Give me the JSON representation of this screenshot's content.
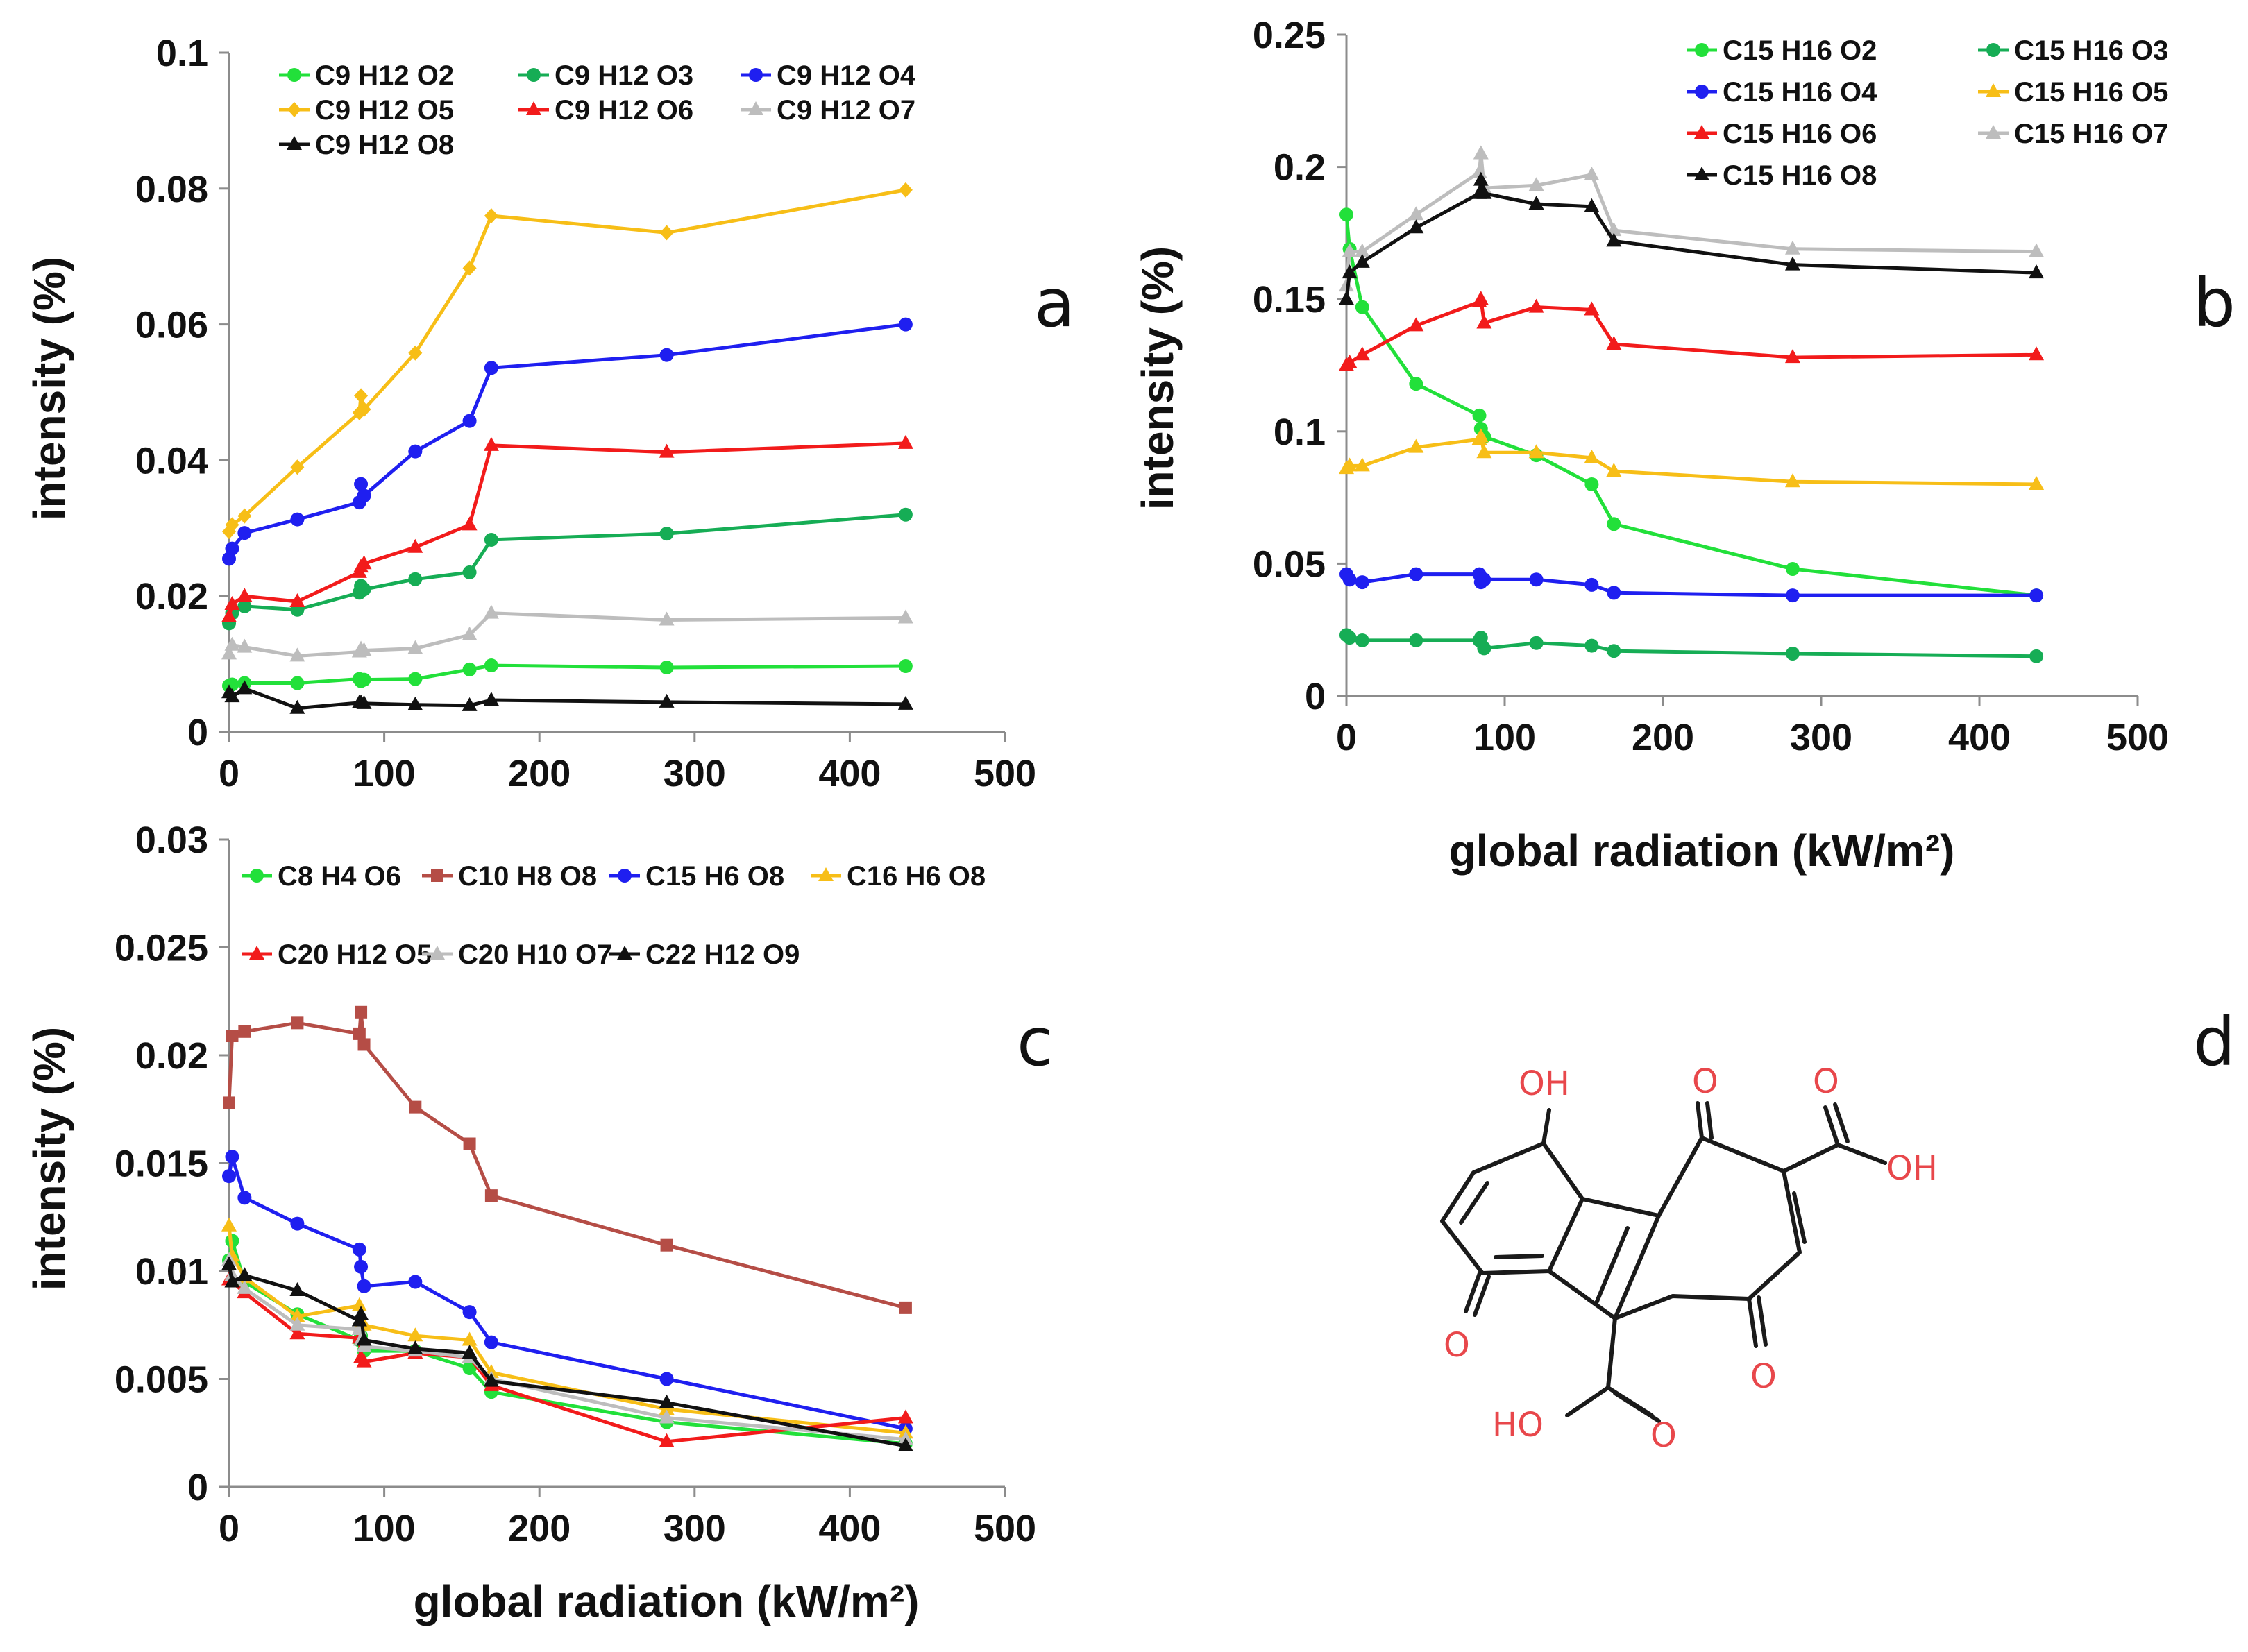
{
  "figure": {
    "panels": [
      "a",
      "b",
      "c",
      "d"
    ],
    "shared_xlabel": "global radiation (kW/m²)"
  },
  "colors": {
    "green": "#22e03a",
    "teal": "#16ad55",
    "blue": "#1f1ff0",
    "orange": "#f7be17",
    "red": "#f21b1b",
    "gray": "#bdbdbd",
    "black": "#111111",
    "brown": "#b54d46",
    "chem_red": "#e8474b",
    "chem_black": "#1a1a1a"
  },
  "chart_data": [
    {
      "id": "a",
      "type": "line",
      "title": "",
      "xlabel": "",
      "ylabel": "intensity (%)",
      "xlim": [
        0,
        500
      ],
      "ylim": [
        0,
        0.1
      ],
      "xticks": [
        0,
        100,
        200,
        300,
        400,
        500
      ],
      "yticks": [
        0,
        0.02,
        0.04,
        0.06,
        0.08,
        0.1
      ],
      "ytick_labels": [
        "0",
        "0.02",
        "0.04",
        "0.06",
        "0.08",
        "0.1"
      ],
      "xtick_labels": [
        "0",
        "100",
        "200",
        "300",
        "400",
        "500"
      ],
      "legend": "top",
      "x": [
        0,
        2,
        10,
        44,
        84,
        85,
        87,
        120,
        155,
        169,
        282,
        436
      ],
      "series": [
        {
          "name": "C9 H12 O2",
          "color": "green",
          "marker": "circle",
          "values": [
            0.0068,
            0.007,
            0.0072,
            0.0072,
            0.0078,
            0.0075,
            0.0077,
            0.0078,
            0.0092,
            0.0098,
            0.0095,
            0.0097
          ]
        },
        {
          "name": "C9 H12 O3",
          "color": "teal",
          "marker": "circle",
          "values": [
            0.016,
            0.0175,
            0.0185,
            0.018,
            0.0205,
            0.0215,
            0.021,
            0.0225,
            0.0235,
            0.0283,
            0.0292,
            0.032
          ]
        },
        {
          "name": "C9 H12 O4",
          "color": "blue",
          "marker": "circle",
          "values": [
            0.0255,
            0.027,
            0.0293,
            0.0313,
            0.0338,
            0.0365,
            0.0348,
            0.0413,
            0.0458,
            0.0536,
            0.0555,
            0.06
          ]
        },
        {
          "name": "C9 H12 O5",
          "color": "orange",
          "marker": "diamond",
          "values": [
            0.0295,
            0.0305,
            0.0318,
            0.039,
            0.047,
            0.0495,
            0.0475,
            0.0558,
            0.0683,
            0.076,
            0.0735,
            0.0798
          ]
        },
        {
          "name": "C9 H12 O6",
          "color": "red",
          "marker": "triangle",
          "values": [
            0.017,
            0.0188,
            0.02,
            0.0192,
            0.0235,
            0.0243,
            0.0248,
            0.0272,
            0.0305,
            0.0422,
            0.0412,
            0.0425
          ]
        },
        {
          "name": "C9 H12 O7",
          "color": "gray",
          "marker": "triangle",
          "values": [
            0.0115,
            0.0128,
            0.0125,
            0.0112,
            0.0118,
            0.0122,
            0.012,
            0.0123,
            0.0143,
            0.0175,
            0.0165,
            0.0168
          ]
        },
        {
          "name": "C9 H12 O8",
          "color": "black",
          "marker": "triangle",
          "values": [
            0.0058,
            0.0052,
            0.0064,
            0.0035,
            0.0043,
            0.0043,
            0.0042,
            0.004,
            0.0039,
            0.0047,
            0.0044,
            0.0041
          ]
        }
      ]
    },
    {
      "id": "b",
      "type": "line",
      "title": "",
      "xlabel": "global radiation (kW/m²)",
      "ylabel": "intensity (%)",
      "xlim": [
        0,
        500
      ],
      "ylim": [
        0,
        0.25
      ],
      "xticks": [
        0,
        100,
        200,
        300,
        400,
        500
      ],
      "yticks": [
        0,
        0.05,
        0.1,
        0.15,
        0.2,
        0.25
      ],
      "ytick_labels": [
        "0",
        "0.05",
        "0.1",
        "0.15",
        "0.2",
        "0.25"
      ],
      "xtick_labels": [
        "0",
        "100",
        "200",
        "300",
        "400",
        "500"
      ],
      "legend": "top-right",
      "x": [
        0,
        2,
        10,
        44,
        84,
        85,
        87,
        120,
        155,
        169,
        282,
        436
      ],
      "series": [
        {
          "name": "C15 H16 O2",
          "color": "green",
          "marker": "circle",
          "values": [
            0.182,
            0.169,
            0.147,
            0.118,
            0.106,
            0.101,
            0.098,
            0.091,
            0.08,
            0.065,
            0.048,
            0.038
          ]
        },
        {
          "name": "C15 H16 O3",
          "color": "teal",
          "marker": "circle",
          "values": [
            0.023,
            0.022,
            0.021,
            0.021,
            0.021,
            0.022,
            0.018,
            0.02,
            0.019,
            0.017,
            0.016,
            0.015
          ]
        },
        {
          "name": "C15 H16 O4",
          "color": "blue",
          "marker": "circle",
          "values": [
            0.046,
            0.044,
            0.043,
            0.046,
            0.046,
            0.043,
            0.044,
            0.044,
            0.042,
            0.039,
            0.038,
            0.038
          ]
        },
        {
          "name": "C15 H16 O5",
          "color": "orange",
          "marker": "triangle",
          "values": [
            0.086,
            0.087,
            0.087,
            0.094,
            0.097,
            0.098,
            0.092,
            0.092,
            0.09,
            0.085,
            0.081,
            0.08
          ]
        },
        {
          "name": "C15 H16 O6",
          "color": "red",
          "marker": "triangle",
          "values": [
            0.125,
            0.126,
            0.129,
            0.14,
            0.149,
            0.15,
            0.141,
            0.147,
            0.146,
            0.133,
            0.128,
            0.129
          ]
        },
        {
          "name": "C15 H16 O7",
          "color": "gray",
          "marker": "triangle",
          "values": [
            0.155,
            0.168,
            0.168,
            0.182,
            0.198,
            0.205,
            0.192,
            0.193,
            0.197,
            0.176,
            0.169,
            0.168
          ]
        },
        {
          "name": "C15 H16 O8",
          "color": "black",
          "marker": "triangle",
          "values": [
            0.15,
            0.16,
            0.164,
            0.177,
            0.19,
            0.195,
            0.19,
            0.186,
            0.185,
            0.172,
            0.163,
            0.16
          ]
        }
      ]
    },
    {
      "id": "c",
      "type": "line",
      "title": "",
      "xlabel": "global radiation (kW/m²)",
      "ylabel": "intensity (%)",
      "xlim": [
        0,
        500
      ],
      "ylim": [
        0,
        0.03
      ],
      "xticks": [
        0,
        100,
        200,
        300,
        400,
        500
      ],
      "yticks": [
        0,
        0.005,
        0.01,
        0.015,
        0.02,
        0.025,
        0.03
      ],
      "ytick_labels": [
        "0",
        "0.005",
        "0.01",
        "0.015",
        "0.02",
        "0.025",
        "0.03"
      ],
      "xtick_labels": [
        "0",
        "100",
        "200",
        "300",
        "400",
        "500"
      ],
      "legend": "top",
      "x": [
        0,
        2,
        10,
        44,
        84,
        85,
        87,
        120,
        155,
        169,
        282,
        436
      ],
      "series": [
        {
          "name": "C8 H4 O6",
          "color": "green",
          "marker": "circle",
          "values": [
            0.0105,
            0.0114,
            0.0095,
            0.008,
            0.0068,
            0.007,
            0.0063,
            0.0063,
            0.0055,
            0.0044,
            0.003,
            0.002
          ]
        },
        {
          "name": "C10 H8 O8",
          "color": "brown",
          "marker": "square",
          "values": [
            0.0178,
            0.0209,
            0.0211,
            0.0215,
            0.021,
            0.022,
            0.0205,
            0.0176,
            0.0159,
            0.0135,
            0.0112,
            0.0083
          ]
        },
        {
          "name": "C15 H6 O8",
          "color": "blue",
          "marker": "circle",
          "values": [
            0.0144,
            0.0153,
            0.0134,
            0.0122,
            0.011,
            0.0102,
            0.0093,
            0.0095,
            0.0081,
            0.0067,
            0.005,
            0.0027
          ]
        },
        {
          "name": "C16 H6 O8",
          "color": "orange",
          "marker": "triangle",
          "values": [
            0.0121,
            0.0107,
            0.0097,
            0.0079,
            0.0084,
            0.0075,
            0.0075,
            0.007,
            0.0068,
            0.0053,
            0.0036,
            0.0025
          ]
        },
        {
          "name": "C20 H12 O5",
          "color": "red",
          "marker": "triangle",
          "values": [
            0.0096,
            0.0095,
            0.009,
            0.0071,
            0.0069,
            0.006,
            0.0058,
            0.0062,
            0.006,
            0.0047,
            0.0021,
            0.0032
          ]
        },
        {
          "name": "C20 H10 O7",
          "color": "gray",
          "marker": "triangle",
          "values": [
            0.0105,
            0.0098,
            0.0092,
            0.0075,
            0.0073,
            0.0068,
            0.0065,
            0.0063,
            0.006,
            0.005,
            0.0032,
            0.0022
          ]
        },
        {
          "name": "C22 H12 O9",
          "color": "black",
          "marker": "triangle",
          "values": [
            0.0103,
            0.0095,
            0.0098,
            0.0091,
            0.0077,
            0.008,
            0.0068,
            0.0064,
            0.0062,
            0.0049,
            0.0039,
            0.0019
          ]
        }
      ]
    }
  ],
  "legend_layouts": {
    "a": "3 columns",
    "b": "2 columns",
    "c": "4 columns on first row, 3 on second"
  },
  "structure_d": {
    "labels": [
      "OH",
      "O",
      "OH",
      "O",
      "O",
      "HO",
      "O",
      "O"
    ]
  }
}
